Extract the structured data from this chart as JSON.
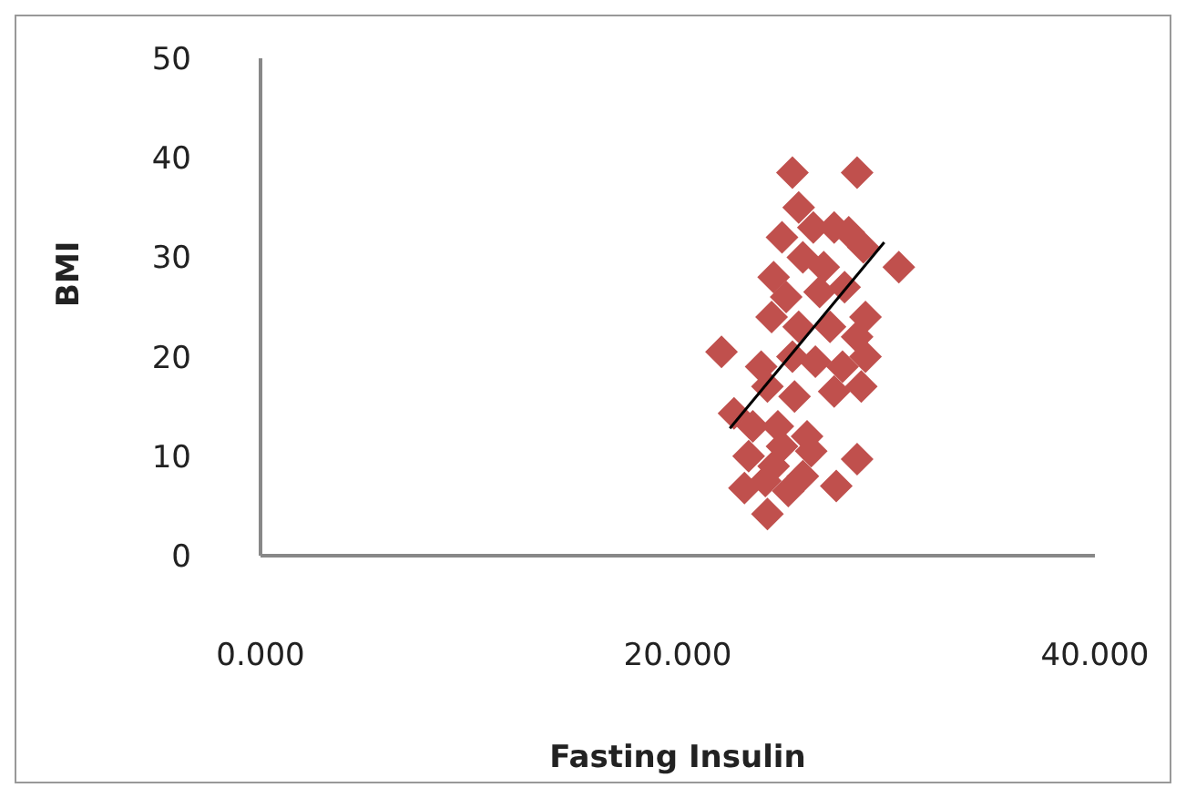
{
  "chart_data": {
    "type": "scatter",
    "xlabel": "Fasting Insulin",
    "ylabel": "BMI",
    "xlim": [
      0,
      40
    ],
    "xticks": [
      {
        "value": 0,
        "label": "0.000"
      },
      {
        "value": 20,
        "label": "20.000"
      },
      {
        "value": 40,
        "label": "40.000"
      }
    ],
    "ylim": [
      0,
      50
    ],
    "yticks": [
      0,
      10,
      20,
      30,
      40,
      50
    ],
    "series": [
      {
        "marker": "diamond",
        "color": "#c0504d",
        "x": [
          25.5,
          28.6,
          25.8,
          26.5,
          25.0,
          27.5,
          28.2,
          28.9,
          30.6,
          24.6,
          26.0,
          27.0,
          25.2,
          26.8,
          28.0,
          29.0,
          24.5,
          25.8,
          27.3,
          28.6,
          29.0,
          22.1,
          24.0,
          25.5,
          26.6,
          27.9,
          28.8,
          24.3,
          25.6,
          27.5,
          22.7,
          23.6,
          24.8,
          26.2,
          25.0,
          23.4,
          24.6,
          26.4,
          28.6,
          27.6,
          23.2,
          24.3,
          25.3,
          26.0,
          24.2
        ],
        "values": [
          38.5,
          38.5,
          35,
          33,
          32,
          33,
          32.5,
          31,
          29,
          28,
          30,
          29,
          26,
          26.5,
          27,
          24,
          24,
          23,
          23,
          22,
          20,
          20.5,
          19,
          20,
          19.5,
          19,
          17,
          17,
          16,
          16.5,
          14.3,
          13,
          13,
          12,
          11,
          10,
          9,
          10.5,
          9.7,
          7,
          6.8,
          4.2,
          6.5,
          8,
          7.5
        ]
      },
      {
        "type": "line",
        "color": "#000000",
        "x": [
          22.5,
          29.9
        ],
        "values": [
          12.8,
          31.5
        ]
      }
    ]
  }
}
